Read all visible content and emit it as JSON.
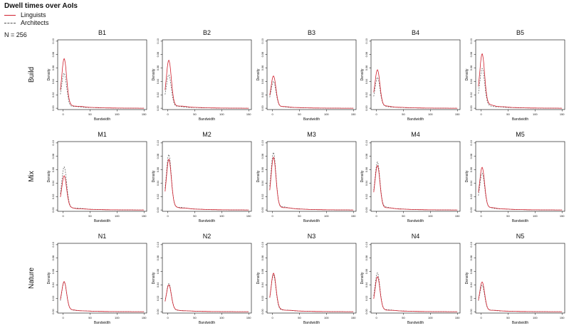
{
  "title": "Dwell times over AoIs",
  "legend": {
    "items": [
      {
        "label": "Linguists",
        "color": "#d0202e",
        "dash": "solid"
      },
      {
        "label": "Architects",
        "color": "#555555",
        "dash": "dashed"
      }
    ]
  },
  "n_label": "N = 256",
  "chart_data": {
    "type": "line",
    "xlabel": "Bandwidth",
    "ylabel": "Density",
    "xlim": [
      -10,
      155
    ],
    "ylim": [
      -0.002,
      0.102
    ],
    "xticks": [
      "0",
      "50",
      "100",
      "150"
    ],
    "yticks": [
      "0.00",
      "0.02",
      "0.04",
      "0.06",
      "0.08",
      "0.10"
    ],
    "rows": [
      {
        "label": "Build",
        "panels": [
          {
            "title": "B1",
            "lingPeak": 0.074,
            "archPeak": 0.052
          },
          {
            "title": "B2",
            "lingPeak": 0.071,
            "archPeak": 0.05
          },
          {
            "title": "B3",
            "lingPeak": 0.048,
            "archPeak": 0.041
          },
          {
            "title": "B4",
            "lingPeak": 0.058,
            "archPeak": 0.047
          },
          {
            "title": "B5",
            "lingPeak": 0.083,
            "archPeak": 0.06
          }
        ]
      },
      {
        "label": "Mix",
        "panels": [
          {
            "title": "M1",
            "lingPeak": 0.052,
            "archPeak": 0.064
          },
          {
            "title": "M2",
            "lingPeak": 0.076,
            "archPeak": 0.082
          },
          {
            "title": "M3",
            "lingPeak": 0.078,
            "archPeak": 0.086
          },
          {
            "title": "M4",
            "lingPeak": 0.066,
            "archPeak": 0.073
          },
          {
            "title": "M5",
            "lingPeak": 0.064,
            "archPeak": 0.056
          }
        ]
      },
      {
        "label": "Nature",
        "panels": [
          {
            "title": "N1",
            "lingPeak": 0.046,
            "archPeak": 0.045
          },
          {
            "title": "N2",
            "lingPeak": 0.041,
            "archPeak": 0.042
          },
          {
            "title": "N3",
            "lingPeak": 0.058,
            "archPeak": 0.054
          },
          {
            "title": "N4",
            "lingPeak": 0.052,
            "archPeak": 0.058
          },
          {
            "title": "N5",
            "lingPeak": 0.044,
            "archPeak": 0.04
          }
        ]
      }
    ]
  }
}
